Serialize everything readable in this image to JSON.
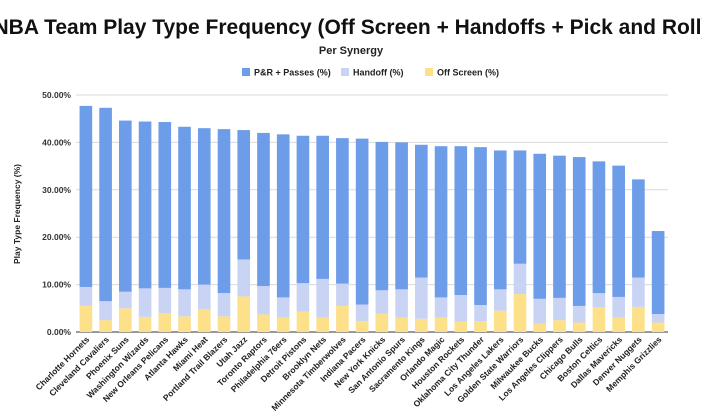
{
  "chart_data": {
    "type": "bar",
    "stacked": true,
    "title": "NBA Team Play Type Frequency (Off Screen + Handoffs + Pick and Roll)",
    "subtitle": "Per Synergy",
    "xlabel": "",
    "ylabel": "Play Type Frequency (%)",
    "ylim": [
      0,
      50
    ],
    "yticks": [
      "0.00%",
      "10.00%",
      "20.00%",
      "30.00%",
      "40.00%",
      "50.00%"
    ],
    "grid": true,
    "legend_position": "top",
    "categories": [
      "Charlotte Hornets",
      "Cleveland Cavaliers",
      "Phoenix Suns",
      "Washington Wizards",
      "New Orleans Pelicans",
      "Atlanta Hawks",
      "Miami Heat",
      "Portland Trail Blazers",
      "Utah Jazz",
      "Toronto Raptors",
      "Philadelphia 76ers",
      "Detroit Pistons",
      "Brooklyn Nets",
      "Minnesota Timberwolves",
      "Indiana Pacers",
      "New York Knicks",
      "San Antonio Spurs",
      "Sacramento Kings",
      "Orlando Magic",
      "Houston Rockets",
      "Oklahoma City Thunder",
      "Los Angeles Lakers",
      "Golden State Warriors",
      "Milwaukee Bucks",
      "Los Angeles Clippers",
      "Chicago Bulls",
      "Boston Celtics",
      "Dallas Mavericks",
      "Denver Nuggets",
      "Memphis Grizzlies"
    ],
    "series": [
      {
        "name": "Off Screen (%)",
        "color": "#fce08a",
        "values": [
          5.5,
          2.5,
          5.0,
          3.2,
          4.0,
          3.3,
          4.8,
          3.3,
          7.5,
          3.7,
          3.0,
          4.3,
          3.0,
          5.5,
          2.3,
          3.9,
          3.0,
          2.8,
          3.0,
          2.2,
          2.3,
          4.5,
          8.0,
          1.8,
          2.5,
          2.0,
          5.2,
          3.0,
          5.3,
          2.0
        ]
      },
      {
        "name": "Handoff (%)",
        "color": "#c9d4f4",
        "values": [
          4.0,
          4.0,
          3.5,
          6.0,
          5.3,
          5.7,
          5.2,
          4.9,
          7.8,
          6.0,
          4.3,
          6.0,
          8.2,
          4.7,
          3.5,
          4.9,
          6.0,
          8.7,
          4.3,
          5.6,
          3.4,
          4.5,
          6.4,
          5.2,
          4.7,
          3.5,
          3.0,
          4.4,
          6.2,
          1.8
        ]
      },
      {
        "name": "P&R + Passes (%)",
        "color": "#6d9ce8",
        "values": [
          38.2,
          40.8,
          36.1,
          35.2,
          35.0,
          34.3,
          33.0,
          34.6,
          27.3,
          32.3,
          34.4,
          31.1,
          30.2,
          30.7,
          35.0,
          31.3,
          31.0,
          28.0,
          31.9,
          31.4,
          33.3,
          29.3,
          23.9,
          30.6,
          30.0,
          31.4,
          27.8,
          27.7,
          20.7,
          17.5
        ]
      }
    ],
    "legend_order": [
      "P&R + Passes (%)",
      "Handoff (%)",
      "Off Screen (%)"
    ]
  }
}
